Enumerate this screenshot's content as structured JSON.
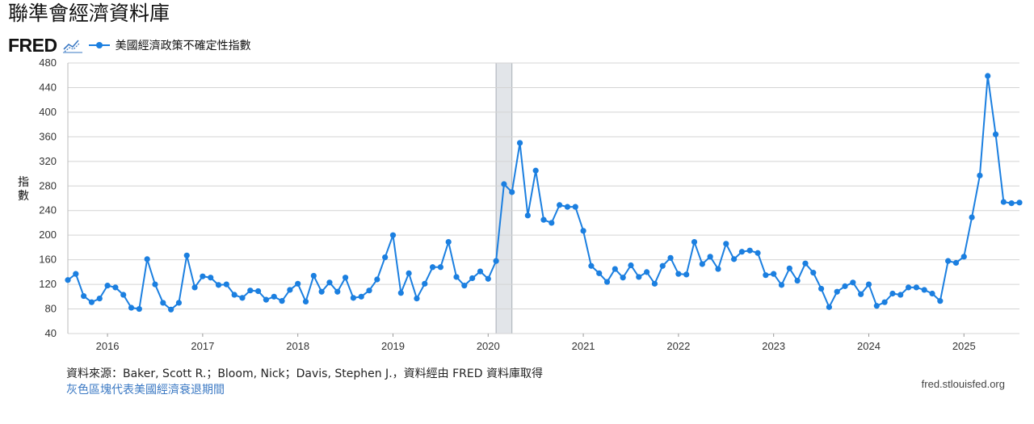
{
  "page_title": "聯準會經濟資料庫",
  "brand": {
    "logo_text": "FRED"
  },
  "legend_label": "美國經濟政策不確定性指數",
  "y_axis_title": "指數",
  "source_text": "資料來源：Baker, Scott R.；Bloom, Nick；Davis, Stephen J.，資料經由 FRED 資料庫取得",
  "recession_note": "灰色區塊代表美國經濟衰退期間",
  "site_url": "fred.stlouisfed.org",
  "colors": {
    "series": "#1b7fe0",
    "grid": "#d4d4d4",
    "recession": "#e2e5e9",
    "recession_border": "#a8aeb6"
  },
  "chart_data": {
    "type": "line",
    "title": "",
    "xlabel": "",
    "ylabel": "指數",
    "ylim": [
      40,
      480
    ],
    "xlim": [
      "2015-08",
      "2025-08"
    ],
    "yticks": [
      40,
      80,
      120,
      160,
      200,
      240,
      280,
      320,
      360,
      400,
      440,
      480
    ],
    "xticks": [
      "2016",
      "2017",
      "2018",
      "2019",
      "2020",
      "2021",
      "2022",
      "2023",
      "2024",
      "2025"
    ],
    "grid": true,
    "recessions": [
      {
        "start": "2020-02",
        "end": "2020-04"
      }
    ],
    "series": [
      {
        "name": "美國經濟政策不確定性指數",
        "start": "2015-08",
        "frequency": "monthly",
        "values": [
          127,
          137,
          101,
          91,
          97,
          118,
          115,
          103,
          82,
          80,
          161,
          120,
          90,
          79,
          90,
          167,
          115,
          133,
          131,
          119,
          120,
          103,
          98,
          110,
          109,
          95,
          100,
          93,
          111,
          121,
          92,
          134,
          108,
          123,
          108,
          131,
          98,
          100,
          110,
          128,
          164,
          200,
          106,
          138,
          97,
          121,
          148,
          148,
          189,
          132,
          118,
          130,
          141,
          129,
          158,
          283,
          270,
          350,
          232,
          305,
          225,
          220,
          249,
          246,
          246,
          207,
          150,
          138,
          124,
          145,
          131,
          151,
          132,
          140,
          121,
          150,
          163,
          137,
          136,
          189,
          153,
          165,
          145,
          186,
          161,
          173,
          175,
          171,
          135,
          137,
          119,
          146,
          126,
          154,
          139,
          113,
          83,
          108,
          117,
          123,
          104,
          120,
          85,
          91,
          105,
          103,
          115,
          115,
          111,
          105,
          93,
          158,
          155,
          165,
          229,
          297,
          459,
          364,
          254,
          252,
          253
        ]
      }
    ]
  }
}
